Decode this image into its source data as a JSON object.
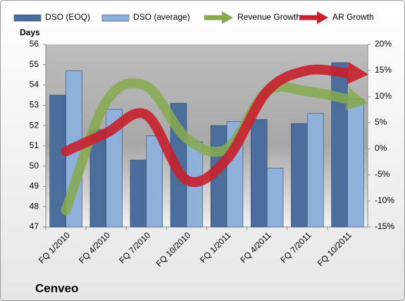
{
  "chart_data": {
    "type": "bar",
    "title": "Cenveo",
    "y_label": "Days",
    "categories": [
      "FQ 1/2010",
      "FQ 4/2010",
      "FQ 7/2010",
      "FQ 10/2010",
      "FQ 1/2011",
      "FQ 4/2011",
      "FQ 7/2011",
      "FQ 10/2011"
    ],
    "series": [
      {
        "name": "DSO (EOQ)",
        "color": "#4a6d9c",
        "values": [
          53.5,
          51.8,
          50.3,
          53.1,
          52.0,
          52.3,
          52.1,
          55.1
        ]
      },
      {
        "name": "DSO (average)",
        "color": "#8fb0d8",
        "values": [
          54.7,
          52.8,
          51.5,
          51.2,
          52.2,
          49.9,
          52.6,
          53.3
        ]
      },
      {
        "name": "Revenue Growth",
        "color": "#86aa4e",
        "type": "line",
        "axis": "y2",
        "values": [
          -11.8,
          9,
          12,
          2,
          0,
          11,
          11,
          9.5
        ]
      },
      {
        "name": "AR Growth",
        "color": "#c8202c",
        "type": "line",
        "axis": "y2",
        "values": [
          -0.5,
          3,
          6.5,
          -6,
          -2,
          11,
          15,
          14.5
        ]
      }
    ],
    "ylim": [
      47,
      56
    ],
    "yticks": [
      47,
      48,
      49,
      50,
      51,
      52,
      53,
      54,
      55,
      56
    ],
    "y2lim": [
      -15,
      20
    ],
    "y2ticks": [
      {
        "value": -15,
        "label": "-15%"
      },
      {
        "value": -10,
        "label": "-10%"
      },
      {
        "value": -5,
        "label": "-5%"
      },
      {
        "value": 0,
        "label": "0%"
      },
      {
        "value": 5,
        "label": "5%"
      },
      {
        "value": 10,
        "label": "10%"
      },
      {
        "value": 15,
        "label": "15%"
      },
      {
        "value": 20,
        "label": "20%"
      }
    ]
  }
}
